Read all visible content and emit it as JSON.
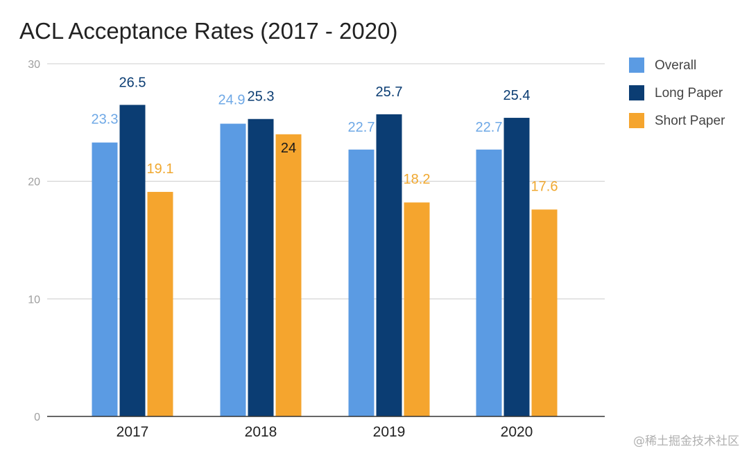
{
  "chart_data": {
    "type": "bar",
    "title": "ACL Acceptance Rates (2017 - 2020)",
    "categories": [
      "2017",
      "2018",
      "2019",
      "2020"
    ],
    "series": [
      {
        "name": "Overall",
        "values": [
          23.3,
          24.9,
          22.7,
          22.7
        ],
        "color": "#5b9be3",
        "label_color": "#6ea8e6"
      },
      {
        "name": "Long Paper",
        "values": [
          26.5,
          25.3,
          25.7,
          25.4
        ],
        "color": "#0b3d73",
        "label_color": "#0b3d73"
      },
      {
        "name": "Short Paper",
        "values": [
          19.1,
          24,
          18.2,
          17.6
        ],
        "color": "#f5a52e",
        "label_color": "#f0a830"
      }
    ],
    "data_labels": [
      [
        "23.3",
        "24.9",
        "22.7",
        "22.7"
      ],
      [
        "26.5",
        "25.3",
        "25.7",
        "25.4"
      ],
      [
        "19.1",
        "24",
        "18.2",
        "17.6"
      ]
    ],
    "y_ticks": [
      0,
      10,
      20,
      30
    ],
    "y_tick_labels": [
      "0",
      "10",
      "20",
      "30"
    ],
    "ylim": [
      0,
      30
    ],
    "xlabel": "",
    "ylabel": "",
    "grid": true,
    "legend_position": "right"
  },
  "watermark": "@稀土掘金技术社区"
}
